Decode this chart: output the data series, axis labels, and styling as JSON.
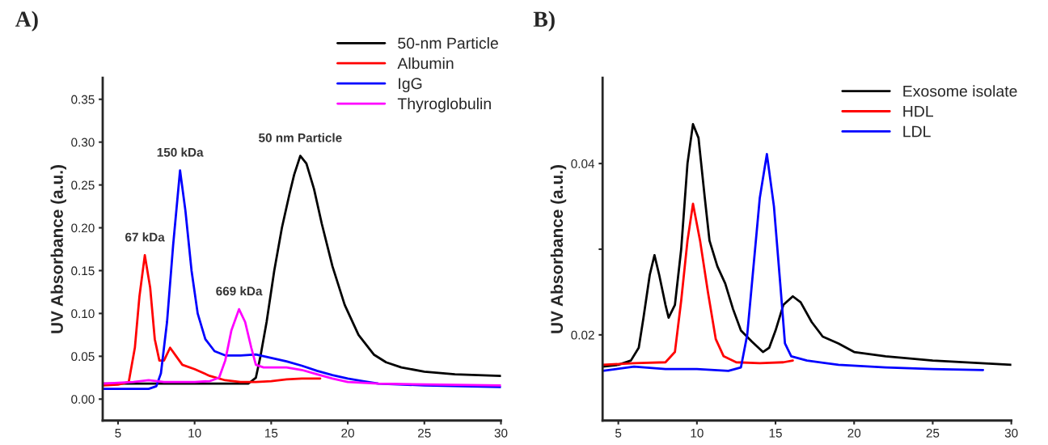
{
  "chart_data": [
    {
      "type": "line",
      "title": "A)",
      "ylabel": "UV Absorbance (a.u.)",
      "xlim": [
        4,
        30
      ],
      "ylim": [
        -0.025,
        0.375
      ],
      "xticks": [
        5,
        10,
        15,
        20,
        25,
        30
      ],
      "yticks": [
        {
          "value": 0,
          "label": "0.00"
        },
        {
          "value": 0.05,
          "label": "0.05"
        },
        {
          "value": 0.1,
          "label": "0.10"
        },
        {
          "value": 0.15,
          "label": "0.15"
        },
        {
          "value": 0.2,
          "label": "0.20"
        },
        {
          "value": 0.25,
          "label": "0.25"
        },
        {
          "value": 0.3,
          "label": "0.30"
        },
        {
          "value": 0.35,
          "label": "0.35"
        }
      ],
      "grid": false,
      "legend": "top right",
      "line_style": "solid",
      "marker": "none",
      "series": [
        {
          "name": "50-nm Particle",
          "color": "#000000",
          "x": [
            4,
            13.5,
            14,
            14.3,
            14.7,
            15.2,
            15.7,
            16.2,
            16.5,
            16.9,
            17.3,
            17.8,
            18.3,
            19,
            19.8,
            20.7,
            21.7,
            22.5,
            23.5,
            25,
            27,
            30
          ],
          "values": [
            0.018,
            0.018,
            0.025,
            0.05,
            0.09,
            0.15,
            0.2,
            0.24,
            0.262,
            0.284,
            0.275,
            0.245,
            0.205,
            0.155,
            0.11,
            0.075,
            0.052,
            0.043,
            0.037,
            0.032,
            0.029,
            0.027
          ]
        },
        {
          "name": "Albumin",
          "color": "#ff0000",
          "x": [
            4,
            5,
            5.7,
            6.1,
            6.4,
            6.75,
            7.1,
            7.4,
            7.7,
            8,
            8.4,
            8.8,
            9.2,
            10,
            11,
            12,
            13,
            14,
            15,
            16,
            17,
            18.2
          ],
          "values": [
            0.016,
            0.017,
            0.02,
            0.06,
            0.12,
            0.168,
            0.13,
            0.07,
            0.045,
            0.045,
            0.06,
            0.05,
            0.04,
            0.035,
            0.027,
            0.022,
            0.02,
            0.02,
            0.021,
            0.023,
            0.024,
            0.024
          ]
        },
        {
          "name": "IgG",
          "color": "#0000ff",
          "x": [
            4,
            7,
            7.5,
            7.8,
            8.2,
            8.6,
            9.05,
            9.4,
            9.8,
            10.2,
            10.7,
            11.3,
            12,
            13,
            14,
            15,
            16,
            17,
            18,
            19,
            20,
            21,
            22,
            25,
            30
          ],
          "values": [
            0.012,
            0.012,
            0.015,
            0.03,
            0.09,
            0.18,
            0.267,
            0.22,
            0.15,
            0.1,
            0.07,
            0.056,
            0.051,
            0.051,
            0.052,
            0.048,
            0.044,
            0.039,
            0.033,
            0.028,
            0.024,
            0.021,
            0.018,
            0.016,
            0.014
          ]
        },
        {
          "name": "Thyroglobulin",
          "color": "#ff00ff",
          "x": [
            4,
            6,
            7,
            8,
            10,
            11,
            11.6,
            12,
            12.4,
            12.9,
            13.3,
            13.7,
            14,
            14.5,
            16,
            17,
            18,
            19,
            20,
            22,
            30
          ],
          "values": [
            0.018,
            0.02,
            0.022,
            0.02,
            0.02,
            0.021,
            0.025,
            0.045,
            0.08,
            0.105,
            0.09,
            0.06,
            0.04,
            0.037,
            0.037,
            0.034,
            0.029,
            0.024,
            0.02,
            0.018,
            0.016
          ]
        }
      ],
      "annotations": [
        {
          "text": "67 kDa",
          "x": 6.75,
          "y": 0.168
        },
        {
          "text": "150 kDa",
          "x": 9.05,
          "y": 0.267
        },
        {
          "text": "669 kDa",
          "x": 12.9,
          "y": 0.105
        },
        {
          "text": "50 nm Particle",
          "x": 16.9,
          "y": 0.284
        }
      ]
    },
    {
      "type": "line",
      "title": "B)",
      "ylabel": "UV Absorbance (a.u.)",
      "xlim": [
        4,
        30
      ],
      "ylim": [
        0.01,
        0.05
      ],
      "xticks": [
        5,
        10,
        15,
        20,
        25,
        30
      ],
      "yticks": [
        0.02,
        {
          "value": 0.03,
          "label": null
        },
        0.04
      ],
      "grid": false,
      "legend": "top right",
      "line_style": "solid",
      "marker": "none",
      "series": [
        {
          "name": "Exosome isolate",
          "color": "#000000",
          "x": [
            4,
            5,
            5.8,
            6.3,
            6.6,
            7,
            7.3,
            7.6,
            8,
            8.2,
            8.6,
            9,
            9.4,
            9.75,
            10.1,
            10.5,
            10.8,
            11.3,
            11.8,
            12.3,
            12.8,
            13.5,
            14.2,
            14.6,
            15,
            15.5,
            16.1,
            16.6,
            17.3,
            18,
            19,
            20,
            22,
            25,
            30
          ],
          "values": [
            0.0163,
            0.0165,
            0.017,
            0.0185,
            0.022,
            0.027,
            0.0293,
            0.027,
            0.0235,
            0.022,
            0.0235,
            0.03,
            0.04,
            0.0446,
            0.043,
            0.036,
            0.031,
            0.028,
            0.026,
            0.023,
            0.0205,
            0.0192,
            0.018,
            0.0185,
            0.0205,
            0.0235,
            0.0245,
            0.0238,
            0.0215,
            0.0198,
            0.019,
            0.018,
            0.0175,
            0.017,
            0.0165
          ]
        },
        {
          "name": "HDL",
          "color": "#ff0000",
          "x": [
            4,
            6,
            8,
            8.6,
            9,
            9.4,
            9.75,
            10.2,
            10.7,
            11.2,
            11.7,
            12.5,
            14,
            15.5,
            16.1
          ],
          "values": [
            0.0165,
            0.0167,
            0.0168,
            0.018,
            0.024,
            0.031,
            0.0353,
            0.031,
            0.025,
            0.0195,
            0.0175,
            0.0168,
            0.0167,
            0.0168,
            0.017
          ]
        },
        {
          "name": "LDL",
          "color": "#0000ff",
          "x": [
            4,
            6,
            8,
            10,
            12,
            12.8,
            13.2,
            13.6,
            14,
            14.45,
            14.9,
            15.3,
            15.6,
            16,
            17,
            19,
            22,
            25,
            28.2
          ],
          "values": [
            0.0158,
            0.0163,
            0.016,
            0.016,
            0.0158,
            0.0162,
            0.02,
            0.028,
            0.036,
            0.0411,
            0.035,
            0.026,
            0.019,
            0.0175,
            0.017,
            0.0165,
            0.0162,
            0.016,
            0.0159
          ]
        }
      ]
    }
  ]
}
